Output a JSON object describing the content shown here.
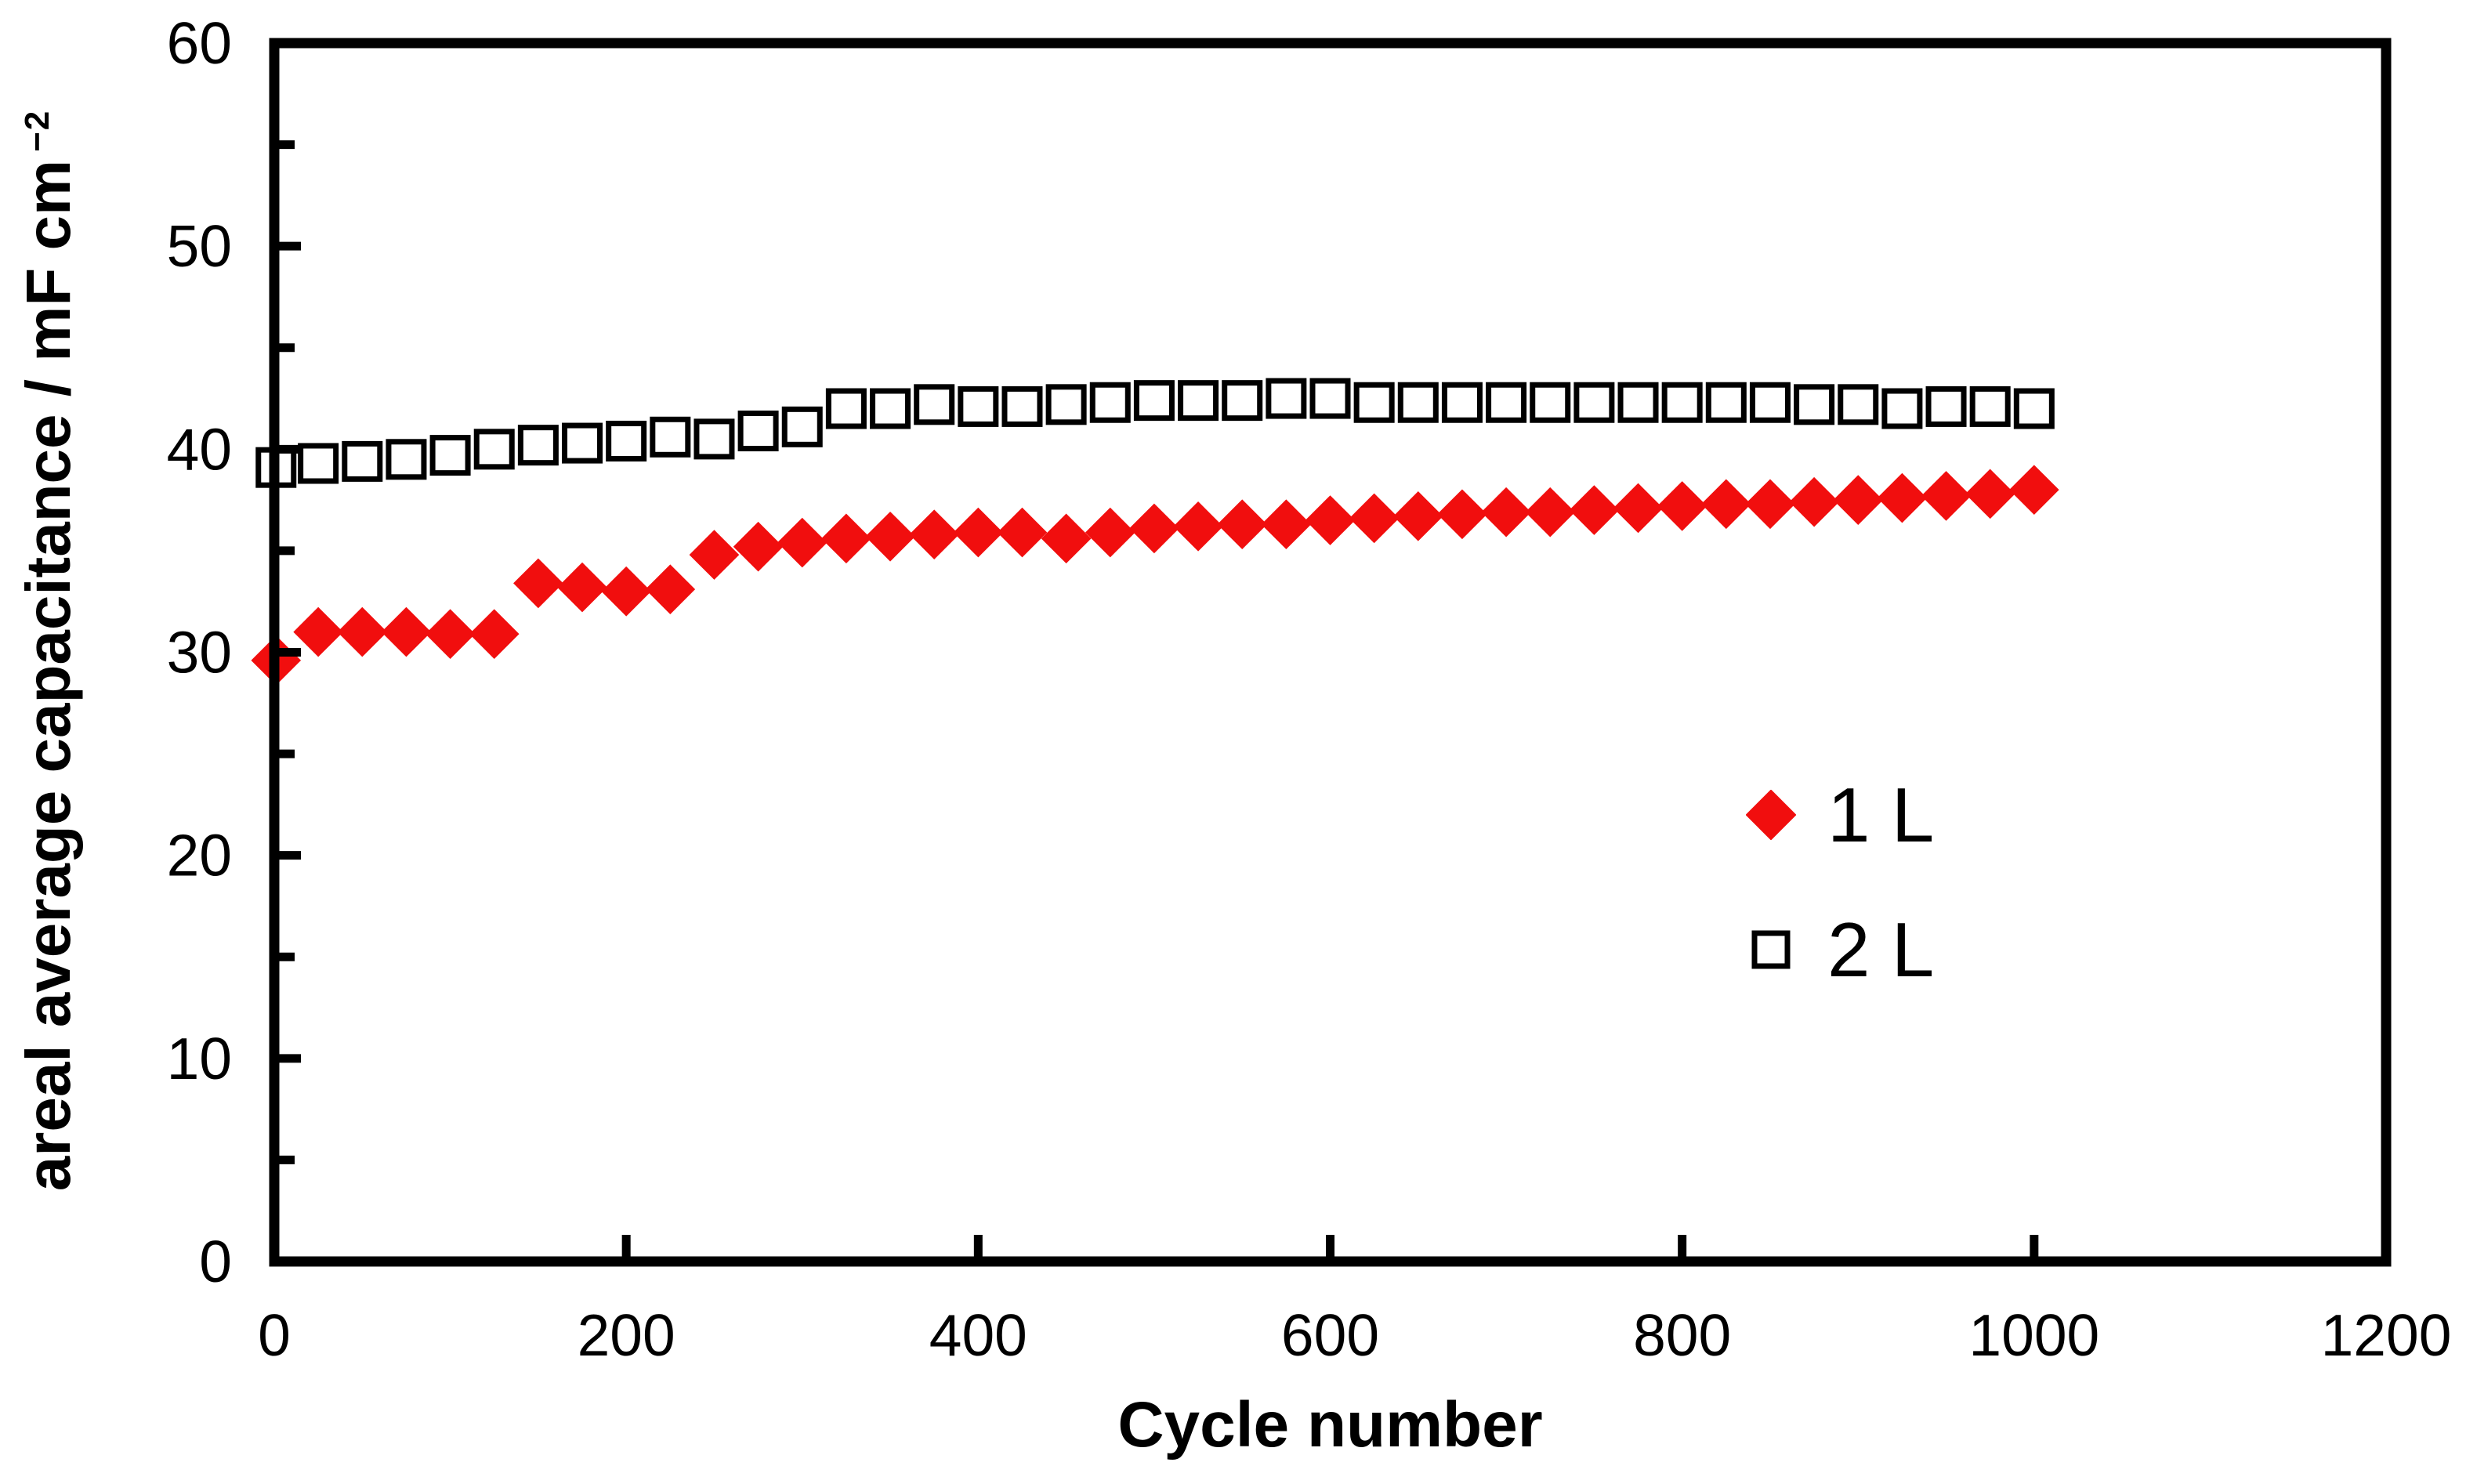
{
  "figure": {
    "background": "#ffffff",
    "frame_color": "#000000",
    "text_color": "#000000"
  },
  "axes": {
    "y_title_main": "areal average capacitance / mF cm",
    "y_title_sup": "−2",
    "x_ticks": [
      "0",
      "200",
      "400",
      "600",
      "800",
      "1000",
      "1200"
    ],
    "y_ticks": [
      "0",
      "10",
      "20",
      "30",
      "40",
      "50",
      "60"
    ]
  },
  "legend": {
    "items": [
      {
        "label": "1 L",
        "marker": "filled-diamond"
      },
      {
        "label": "2 L",
        "marker": "open-square"
      }
    ]
  },
  "chart_data": {
    "type": "scatter",
    "title": "",
    "xlabel": "Cycle number",
    "ylabel": "areal average capacitance / mF cm⁻²",
    "xlim": [
      0,
      1200
    ],
    "ylim": [
      0,
      60
    ],
    "x_tick_step": 200,
    "y_tick_major": 10,
    "y_tick_minor": 5,
    "grid": false,
    "legend_position": "right-center",
    "x": [
      1,
      25,
      50,
      75,
      100,
      125,
      150,
      175,
      200,
      225,
      250,
      275,
      300,
      325,
      350,
      375,
      400,
      425,
      450,
      475,
      500,
      525,
      550,
      575,
      600,
      625,
      650,
      675,
      700,
      725,
      750,
      775,
      800,
      825,
      850,
      875,
      900,
      925,
      950,
      975,
      1000
    ],
    "series": [
      {
        "name": "1 L",
        "marker": "filled-diamond",
        "color": "#f10e0e",
        "values": [
          29.6,
          31.0,
          31.0,
          31.0,
          30.9,
          30.9,
          33.4,
          33.2,
          33.0,
          33.1,
          34.8,
          35.2,
          35.4,
          35.6,
          35.7,
          35.8,
          35.9,
          35.9,
          35.6,
          35.9,
          36.1,
          36.2,
          36.3,
          36.3,
          36.5,
          36.6,
          36.7,
          36.8,
          36.9,
          36.9,
          37.0,
          37.1,
          37.2,
          37.3,
          37.3,
          37.4,
          37.5,
          37.6,
          37.7,
          37.8,
          38.0
        ]
      },
      {
        "name": "2 L",
        "marker": "open-square",
        "color": "#000000",
        "fill": "#ffffff",
        "values": [
          39.1,
          39.3,
          39.4,
          39.5,
          39.7,
          40.0,
          40.2,
          40.3,
          40.4,
          40.6,
          40.5,
          40.9,
          41.1,
          42.0,
          42.0,
          42.2,
          42.1,
          42.1,
          42.2,
          42.3,
          42.4,
          42.4,
          42.4,
          42.5,
          42.5,
          42.3,
          42.3,
          42.3,
          42.3,
          42.3,
          42.3,
          42.3,
          42.3,
          42.3,
          42.3,
          42.2,
          42.2,
          42.0,
          42.1,
          42.1,
          42.0
        ]
      }
    ]
  }
}
